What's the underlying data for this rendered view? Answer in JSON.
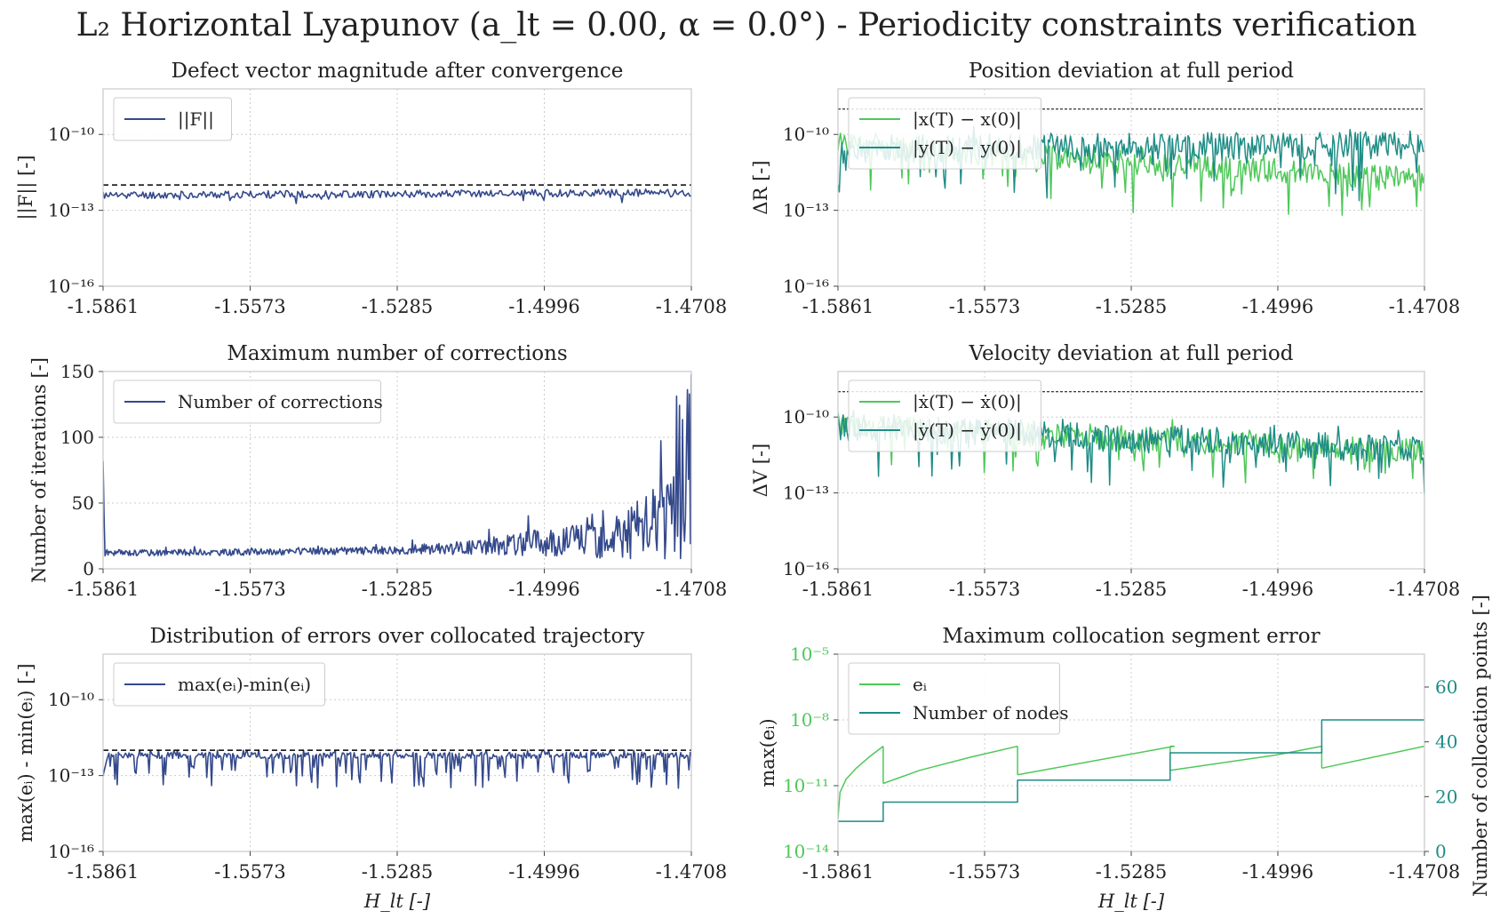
{
  "figure": {
    "suptitle": "L₂ Horizontal Lyapunov (a_lt = 0.00, α = 0.0°) - Periodicity constraints verification",
    "colors": {
      "navy": "#34498b",
      "light_green": "#4fc85a",
      "teal": "#1f8d85",
      "grid": "#cccccc",
      "spine": "#c8c8c8",
      "threshold": "#000000"
    }
  },
  "x_axis": {
    "ticks": [
      "-1.5861",
      "-1.5573",
      "-1.5285",
      "-1.4996",
      "-1.4708"
    ],
    "xlabel": "H_lt [-]",
    "range": [
      -1.5861,
      -1.4708
    ]
  },
  "chart_data": [
    {
      "id": "defect",
      "type": "line",
      "title": "Defect vector magnitude after convergence",
      "ylabel": "||F|| [-]",
      "yscale": "log",
      "ylim_exp": [
        -16,
        -8.2
      ],
      "yticks": [
        {
          "exp": -10,
          "label": "10⁻¹⁰"
        },
        {
          "exp": -13,
          "label": "10⁻¹³"
        },
        {
          "exp": -16,
          "label": "10⁻¹⁶"
        }
      ],
      "threshold_exp": -12,
      "legend": [
        {
          "name": "||F||",
          "color": "#34498b"
        }
      ],
      "series": [
        {
          "name": "||F||",
          "color": "#34498b",
          "gen": {
            "kind": "logband",
            "start": -12.4,
            "end": -12.3,
            "amp": 0.15,
            "spike": 0.1,
            "n": 400,
            "seed": 11
          }
        }
      ]
    },
    {
      "id": "position",
      "type": "line",
      "title": "Position deviation at full period",
      "ylabel": "ΔR [-]",
      "yscale": "log",
      "ylim_exp": [
        -16,
        -8.2
      ],
      "yticks": [
        {
          "exp": -10,
          "label": "10⁻¹⁰"
        },
        {
          "exp": -13,
          "label": "10⁻¹³"
        },
        {
          "exp": -16,
          "label": "10⁻¹⁶"
        }
      ],
      "threshold_exp": -9,
      "legend": [
        {
          "name": "|x(T) − x(0)|",
          "color": "#4fc85a"
        },
        {
          "name": "|y(T) − y(0)|",
          "color": "#1f8d85"
        }
      ],
      "series": [
        {
          "name": "|x(T) − x(0)|",
          "color": "#4fc85a",
          "gen": {
            "kind": "noisy",
            "start": -10.4,
            "end": -11.8,
            "amp": 0.5,
            "spike": 1.6,
            "n": 450,
            "seed": 21
          }
        },
        {
          "name": "|y(T) − y(0)|",
          "color": "#1f8d85",
          "gen": {
            "kind": "noisy",
            "start": -10.6,
            "end": -10.4,
            "amp": 0.55,
            "spike": 2.0,
            "n": 450,
            "seed": 22
          }
        }
      ]
    },
    {
      "id": "corrections",
      "type": "line",
      "title": "Maximum number of corrections",
      "ylabel": "Number of iterations [-]",
      "yscale": "linear",
      "ylim": [
        0,
        150
      ],
      "yticks": [
        {
          "v": 0,
          "label": "0"
        },
        {
          "v": 50,
          "label": "50"
        },
        {
          "v": 100,
          "label": "100"
        },
        {
          "v": 150,
          "label": "150"
        }
      ],
      "legend": [
        {
          "name": "Number of corrections",
          "color": "#34498b"
        }
      ],
      "series": [
        {
          "name": "Number of corrections",
          "color": "#34498b",
          "gen": {
            "kind": "corrections",
            "n": 600,
            "seed": 31
          }
        }
      ]
    },
    {
      "id": "velocity",
      "type": "line",
      "title": "Velocity deviation at full period",
      "ylabel": "ΔV [-]",
      "yscale": "log",
      "ylim_exp": [
        -16,
        -8.2
      ],
      "yticks": [
        {
          "exp": -10,
          "label": "10⁻¹⁰"
        },
        {
          "exp": -13,
          "label": "10⁻¹³"
        },
        {
          "exp": -16,
          "label": "10⁻¹⁶"
        }
      ],
      "threshold_exp": -9,
      "legend": [
        {
          "name": "|ẋ(T) − ẋ(0)|",
          "color": "#4fc85a"
        },
        {
          "name": "|ẏ(T) − ẏ(0)|",
          "color": "#1f8d85"
        }
      ],
      "series": [
        {
          "name": "|ẋ(T) − ẋ(0)|",
          "color": "#4fc85a",
          "gen": {
            "kind": "noisy",
            "start": -10.3,
            "end": -11.4,
            "amp": 0.5,
            "spike": 1.5,
            "n": 450,
            "seed": 41
          }
        },
        {
          "name": "|ẏ(T) − ẏ(0)|",
          "color": "#1f8d85",
          "gen": {
            "kind": "noisy",
            "start": -10.4,
            "end": -11.3,
            "amp": 0.55,
            "spike": 1.8,
            "n": 450,
            "seed": 42
          }
        }
      ]
    },
    {
      "id": "distribution",
      "type": "line",
      "title": "Distribution of errors over collocated trajectory",
      "ylabel": "max(eᵢ) - min(eᵢ) [-]",
      "yscale": "log",
      "ylim_exp": [
        -16,
        -8.2
      ],
      "yticks": [
        {
          "exp": -10,
          "label": "10⁻¹⁰"
        },
        {
          "exp": -13,
          "label": "10⁻¹³"
        },
        {
          "exp": -16,
          "label": "10⁻¹⁶"
        }
      ],
      "threshold_exp": -12,
      "legend": [
        {
          "name": "max(eᵢ)-min(eᵢ)",
          "color": "#34498b"
        }
      ],
      "series": [
        {
          "name": "max(eᵢ)-min(eᵢ)",
          "color": "#34498b",
          "gen": {
            "kind": "distribution",
            "n": 500,
            "seed": 51
          }
        }
      ]
    },
    {
      "id": "collocation",
      "type": "line",
      "title": "Maximum collocation segment error",
      "ylabel": "max(eᵢ)",
      "ylabel_right": "Number of collocation points [-]",
      "yscale": "log",
      "ylim_exp": [
        -14,
        -5
      ],
      "yticks": [
        {
          "exp": -5,
          "label": "10⁻⁵"
        },
        {
          "exp": -8,
          "label": "10⁻⁸"
        },
        {
          "exp": -11,
          "label": "10⁻¹¹"
        },
        {
          "exp": -14,
          "label": "10⁻¹⁴"
        }
      ],
      "ylim_right": [
        0,
        72
      ],
      "yticks_right": [
        {
          "v": 0,
          "label": "0"
        },
        {
          "v": 20,
          "label": "20"
        },
        {
          "v": 40,
          "label": "40"
        },
        {
          "v": 60,
          "label": "60"
        }
      ],
      "legend": [
        {
          "name": "eᵢ",
          "color": "#4fc85a"
        },
        {
          "name": "Number of nodes",
          "color": "#1f8d85"
        }
      ],
      "series": [
        {
          "name": "eᵢ",
          "color": "#4fc85a",
          "axis": "left",
          "segments": [
            {
              "x": [
                -1.5861,
                -1.5857,
                -1.5845,
                -1.5825,
                -1.58,
                -1.5772
              ],
              "y_exp": [
                -12.5,
                -11.3,
                -10.7,
                -10.2,
                -9.7,
                -9.2
              ]
            },
            {
              "x": [
                -1.5772,
                -1.57,
                -1.56,
                -1.5508
              ],
              "y_exp": [
                -10.9,
                -10.3,
                -9.7,
                -9.2
              ]
            },
            {
              "x": [
                -1.5508,
                -1.52,
                -1.5208
              ],
              "y_exp": [
                -10.5,
                -9.2,
                -9.2
              ]
            },
            {
              "x": [
                -1.5208,
                -1.5,
                -1.491
              ],
              "y_exp": [
                -10.3,
                -9.6,
                -9.2
              ]
            },
            {
              "x": [
                -1.491,
                -1.4708
              ],
              "y_exp": [
                -10.2,
                -9.2
              ]
            }
          ]
        },
        {
          "name": "Number of nodes",
          "color": "#1f8d85",
          "axis": "right",
          "x": [
            -1.5861,
            -1.5772,
            -1.5772,
            -1.5508,
            -1.5508,
            -1.5208,
            -1.5208,
            -1.491,
            -1.491,
            -1.4708
          ],
          "y": [
            11,
            11,
            18,
            18,
            26,
            26,
            36,
            36,
            48,
            48
          ]
        }
      ]
    }
  ]
}
